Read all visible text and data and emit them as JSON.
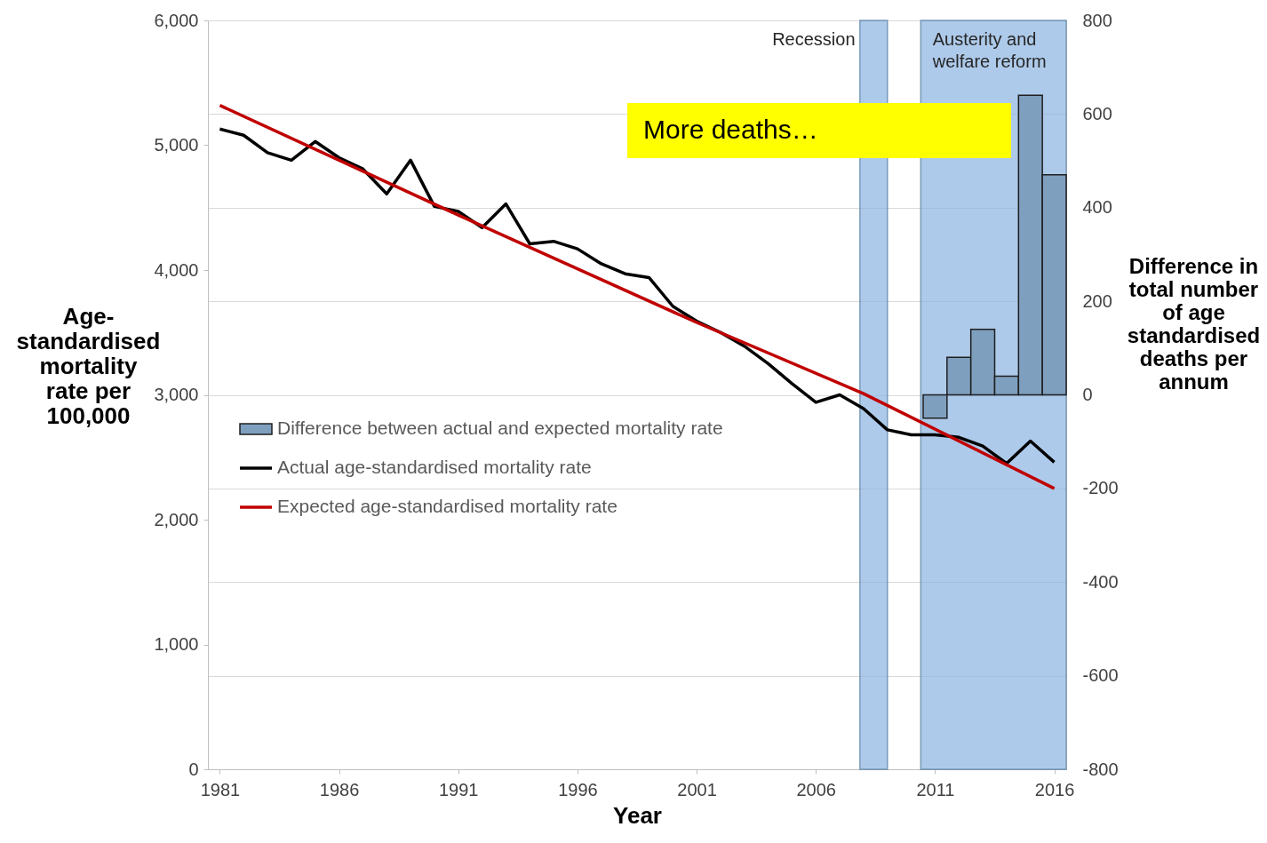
{
  "chart_data": {
    "type": "line",
    "xlabel": "Year",
    "ylabel": "Age-standardised mortality rate per 100,000",
    "y2label": "Difference in total number of age standardised deaths per annum",
    "x": [
      1981,
      1982,
      1983,
      1984,
      1985,
      1986,
      1987,
      1988,
      1989,
      1990,
      1991,
      1992,
      1993,
      1994,
      1995,
      1996,
      1997,
      1998,
      1999,
      2000,
      2001,
      2002,
      2003,
      2004,
      2005,
      2006,
      2007,
      2008,
      2009,
      2010,
      2011,
      2012,
      2013,
      2014,
      2015,
      2016
    ],
    "series": [
      {
        "name": "Difference between actual and expected mortality rate",
        "type": "bar",
        "axis": "y2",
        "color": "#7f9fbf",
        "x": [
          2011,
          2012,
          2013,
          2014,
          2015,
          2016
        ],
        "values": [
          -50,
          80,
          140,
          40,
          640,
          470
        ]
      },
      {
        "name": "Actual age-standardised mortality rate",
        "color": "#000000",
        "values": [
          5130,
          5080,
          4940,
          4880,
          5030,
          4900,
          4810,
          4610,
          4880,
          4510,
          4470,
          4340,
          4530,
          4210,
          4230,
          4170,
          4050,
          3970,
          3940,
          3710,
          3590,
          3500,
          3390,
          3250,
          3090,
          2940,
          3000,
          2890,
          2720,
          2680,
          2680,
          2660,
          2590,
          2450,
          2630,
          2460
        ]
      },
      {
        "name": "Expected age-standardised mortality rate",
        "color": "#c00000",
        "x": [
          1981,
          1991,
          2001,
          2008,
          2016
        ],
        "values": [
          5320,
          4440,
          3580,
          3010,
          2250
        ]
      }
    ],
    "xlim": [
      1980.5,
      2016.5
    ],
    "xticks": [
      1981,
      1986,
      1991,
      1996,
      2001,
      2006,
      2011,
      2016
    ],
    "ylim": [
      0,
      6000
    ],
    "yticks": [
      0,
      {
        "value": 1000,
        "label": "1,000"
      },
      {
        "value": 2000,
        "label": "2,000"
      },
      {
        "value": 3000,
        "label": "3,000"
      },
      {
        "value": 4000,
        "label": "4,000"
      },
      {
        "value": 5000,
        "label": "5,000"
      },
      {
        "value": 6000,
        "label": "6,000"
      }
    ],
    "y2lim": [
      -800,
      800
    ],
    "y2ticks": [
      -800,
      -600,
      -400,
      -200,
      0,
      200,
      400,
      600,
      800
    ],
    "bands": [
      {
        "axis": "x",
        "from": 2007.85,
        "to": 2009,
        "label": "Recession",
        "color": "#8db4e2"
      },
      {
        "axis": "x",
        "from": 2010.4,
        "to": 2016.5,
        "label": "Austerity and welfare reform",
        "color": "#8db4e2"
      }
    ],
    "annotations": [
      "More deaths…"
    ],
    "grid": "y",
    "legend": "left",
    "line_style": "solid",
    "marker": "none"
  }
}
